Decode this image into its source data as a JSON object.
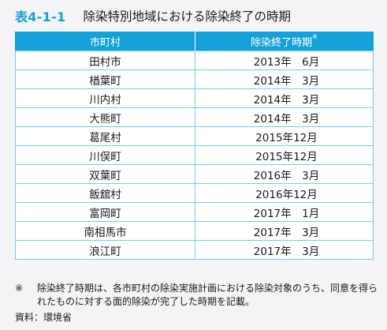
{
  "title": {
    "label": "表4-1-1",
    "text": "除染特別地域における除染終了の時期"
  },
  "table": {
    "headers": {
      "municipality": "市町村",
      "period": "除染終了時期",
      "period_mark": "※"
    },
    "rows": [
      {
        "municipality": "田村市",
        "period": "2013年　6月"
      },
      {
        "municipality": "楢葉町",
        "period": "2014年　3月"
      },
      {
        "municipality": "川内村",
        "period": "2014年　3月"
      },
      {
        "municipality": "大熊町",
        "period": "2014年　3月"
      },
      {
        "municipality": "葛尾村",
        "period": "2015年12月"
      },
      {
        "municipality": "川俣町",
        "period": "2015年12月"
      },
      {
        "municipality": "双葉町",
        "period": "2016年　3月"
      },
      {
        "municipality": "飯舘村",
        "period": "2016年12月"
      },
      {
        "municipality": "富岡町",
        "period": "2017年　1月"
      },
      {
        "municipality": "南相馬市",
        "period": "2017年　3月"
      },
      {
        "municipality": "浪江町",
        "period": "2017年　3月"
      }
    ]
  },
  "note": {
    "mark": "※",
    "text": "除染終了時期は、各市町村の除染実施計画における除染対象のうち、同意を得られたものに対する面的除染が完了した時期を記載。"
  },
  "source": "資料：環境省"
}
